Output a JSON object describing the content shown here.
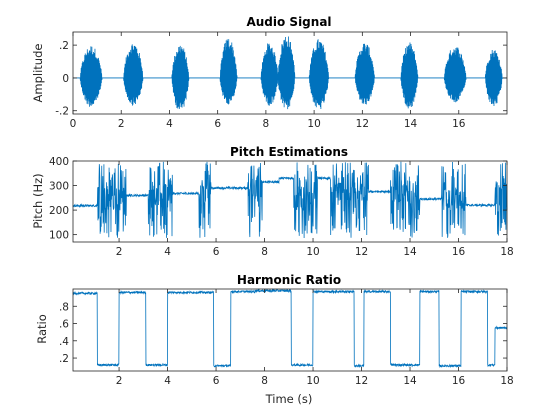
{
  "series_color": "#0072bd",
  "axis_color": "#262626",
  "chart_data": [
    {
      "type": "line",
      "title": "Audio Signal",
      "xlabel": "",
      "ylabel": "Amplitude",
      "xlim": [
        0,
        18
      ],
      "ylim": [
        -0.22,
        0.28
      ],
      "xticks": [
        0,
        2,
        4,
        6,
        8,
        10,
        12,
        14,
        16
      ],
      "yticks": [
        -0.2,
        0,
        0.2
      ],
      "grid": false,
      "bursts": [
        {
          "start": 0.3,
          "end": 1.2,
          "max": 0.2,
          "min": -0.18
        },
        {
          "start": 2.1,
          "end": 2.9,
          "max": 0.22,
          "min": -0.17
        },
        {
          "start": 4.1,
          "end": 4.8,
          "max": 0.21,
          "min": -0.21
        },
        {
          "start": 6.1,
          "end": 6.8,
          "max": 0.25,
          "min": -0.17
        },
        {
          "start": 7.8,
          "end": 8.5,
          "max": 0.22,
          "min": -0.17
        },
        {
          "start": 8.5,
          "end": 9.2,
          "max": 0.27,
          "min": -0.2
        },
        {
          "start": 9.8,
          "end": 10.6,
          "max": 0.24,
          "min": -0.2
        },
        {
          "start": 11.7,
          "end": 12.5,
          "max": 0.22,
          "min": -0.17
        },
        {
          "start": 13.6,
          "end": 14.3,
          "max": 0.22,
          "min": -0.19
        },
        {
          "start": 15.4,
          "end": 16.3,
          "max": 0.2,
          "min": -0.15
        },
        {
          "start": 17.1,
          "end": 17.8,
          "max": 0.18,
          "min": -0.18
        }
      ]
    },
    {
      "type": "line",
      "title": "Pitch Estimations",
      "xlabel": "",
      "ylabel": "Pitch (Hz)",
      "xlim": [
        0.1,
        18
      ],
      "ylim": [
        70,
        400
      ],
      "xticks": [
        2,
        4,
        6,
        8,
        10,
        12,
        14,
        16,
        18
      ],
      "yticks": [
        100,
        200,
        300,
        400
      ],
      "grid": false,
      "segments": [
        {
          "start": 0.1,
          "end": 1.1,
          "level": 218
        },
        {
          "start": 1.1,
          "end": 2.3,
          "level": 255,
          "noisy": true
        },
        {
          "start": 2.3,
          "end": 3.2,
          "level": 260
        },
        {
          "start": 3.2,
          "end": 4.2,
          "level": 255,
          "noisy": true
        },
        {
          "start": 4.2,
          "end": 5.3,
          "level": 268
        },
        {
          "start": 5.3,
          "end": 5.8,
          "level": 270,
          "noisy": true
        },
        {
          "start": 5.8,
          "end": 7.3,
          "level": 290
        },
        {
          "start": 7.3,
          "end": 7.9,
          "level": 300,
          "noisy": true
        },
        {
          "start": 7.9,
          "end": 8.6,
          "level": 315
        },
        {
          "start": 8.6,
          "end": 9.2,
          "level": 330
        },
        {
          "start": 9.2,
          "end": 10.2,
          "level": 250,
          "noisy": true
        },
        {
          "start": 10.2,
          "end": 10.7,
          "level": 330
        },
        {
          "start": 10.7,
          "end": 12.3,
          "level": 265,
          "noisy": true
        },
        {
          "start": 12.3,
          "end": 13.2,
          "level": 275
        },
        {
          "start": 13.2,
          "end": 14.4,
          "level": 270,
          "noisy": true
        },
        {
          "start": 14.4,
          "end": 15.3,
          "level": 245
        },
        {
          "start": 15.3,
          "end": 16.3,
          "level": 240,
          "noisy": true
        },
        {
          "start": 16.3,
          "end": 17.5,
          "level": 220
        },
        {
          "start": 17.5,
          "end": 18,
          "level": 260,
          "noisy": true
        }
      ]
    },
    {
      "type": "line",
      "title": "Harmonic Ratio",
      "xlabel": "Time (s)",
      "ylabel": "Ratio",
      "xlim": [
        0.1,
        18
      ],
      "ylim": [
        0.05,
        1.0
      ],
      "xticks": [
        2,
        4,
        6,
        8,
        10,
        12,
        14,
        16,
        18
      ],
      "yticks": [
        0.2,
        0.4,
        0.6,
        0.8
      ],
      "grid": false,
      "segments": [
        {
          "start": 0.1,
          "end": 1.1,
          "level": 0.95
        },
        {
          "start": 1.1,
          "end": 2.0,
          "level": 0.12
        },
        {
          "start": 2.0,
          "end": 3.1,
          "level": 0.96
        },
        {
          "start": 3.1,
          "end": 4.0,
          "level": 0.12
        },
        {
          "start": 4.0,
          "end": 5.9,
          "level": 0.96
        },
        {
          "start": 5.9,
          "end": 6.6,
          "level": 0.11
        },
        {
          "start": 6.6,
          "end": 7.6,
          "level": 0.97
        },
        {
          "start": 7.6,
          "end": 9.1,
          "level": 0.98
        },
        {
          "start": 9.1,
          "end": 10.0,
          "level": 0.12
        },
        {
          "start": 10.0,
          "end": 11.7,
          "level": 0.97
        },
        {
          "start": 11.7,
          "end": 12.1,
          "level": 0.11
        },
        {
          "start": 12.1,
          "end": 13.2,
          "level": 0.97
        },
        {
          "start": 13.2,
          "end": 14.4,
          "level": 0.12
        },
        {
          "start": 14.4,
          "end": 15.2,
          "level": 0.97
        },
        {
          "start": 15.2,
          "end": 16.1,
          "level": 0.11
        },
        {
          "start": 16.1,
          "end": 17.2,
          "level": 0.97
        },
        {
          "start": 17.2,
          "end": 17.5,
          "level": 0.12
        },
        {
          "start": 17.5,
          "end": 18,
          "level": 0.55
        }
      ]
    }
  ]
}
